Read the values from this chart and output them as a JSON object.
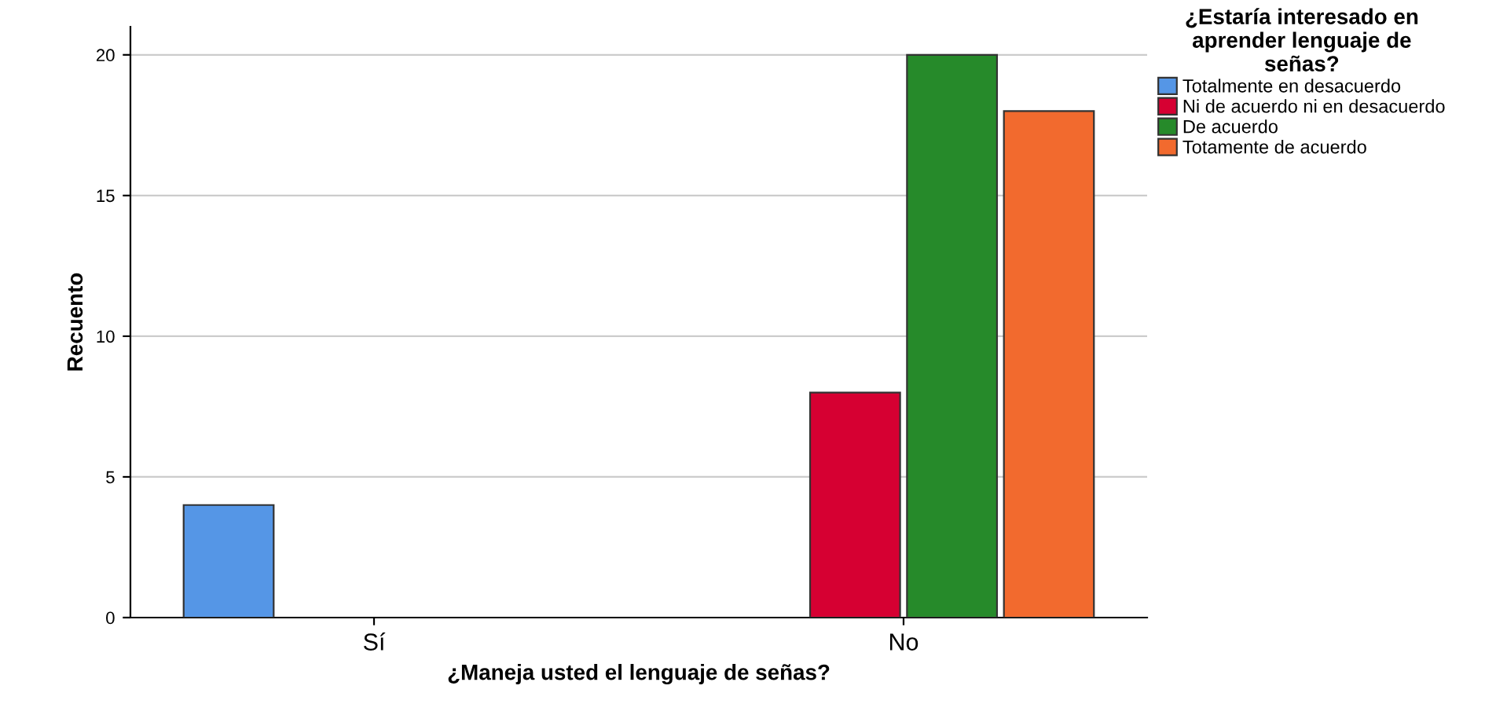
{
  "chart_data": {
    "type": "bar",
    "xlabel": "¿Maneja usted el lenguaje de señas?",
    "ylabel": "Recuento",
    "legend_title": "¿Estaría interesado en\naprender lenguaje de\nseñas?",
    "categories": [
      "Sí",
      "No"
    ],
    "series": [
      {
        "name": "Totalmente en desacuerdo",
        "color": "#5596e6",
        "values": [
          4,
          null
        ]
      },
      {
        "name": "Ni de acuerdo ni en desacuerdo",
        "color": "#d60032",
        "values": [
          null,
          8
        ]
      },
      {
        "name": "De acuerdo",
        "color": "#268a2a",
        "values": [
          null,
          20
        ]
      },
      {
        "name": "Totamente de acuerdo",
        "color": "#f26a2e",
        "values": [
          null,
          18
        ]
      }
    ],
    "ylim": [
      0,
      21
    ],
    "yticks": [
      0,
      5,
      10,
      15,
      20
    ],
    "grid": "y",
    "legend": "top right"
  }
}
